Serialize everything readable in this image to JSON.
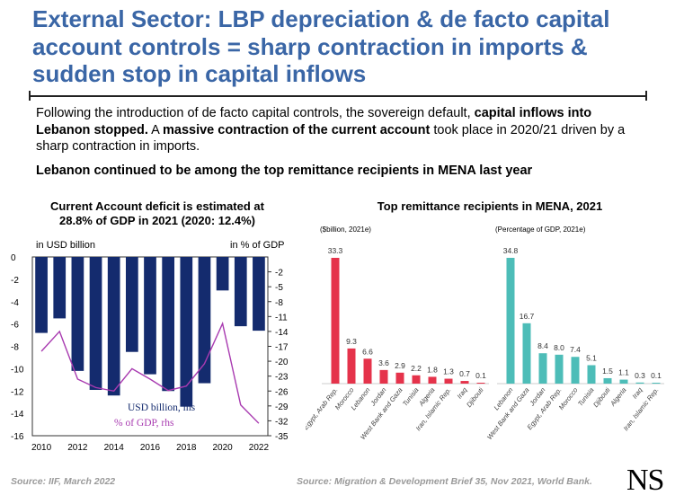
{
  "slide": {
    "title": "External Sector: LBP depreciation & de facto capital account controls = sharp contraction in imports & sudden stop in capital inflows",
    "paragraph": {
      "p1": "Following the introduction of de facto capital controls, the sovereign default, ",
      "b1": "capital inflows into Lebanon stopped.",
      "p2": " A ",
      "b2": "massive contraction of the current account",
      "p3": " took place in 2020/21 driven by a sharp contraction in imports."
    },
    "lead2": "Lebanon continued to be among the top remittance recipients in MENA last year",
    "source_left": "Source: IIF, March 2022",
    "source_right": "Source: Migration & Development Brief 35, Nov 2021, World Bank.",
    "logo": "NS"
  },
  "chart_data": [
    {
      "type": "bar",
      "title": "Current Account deficit is estimated at 28.8% of GDP in 2021 (2020: 12.4%)",
      "left_axis_label": "in USD billion",
      "right_axis_label": "in % of GDP",
      "categories": [
        "2010",
        "2011",
        "2012",
        "2013",
        "2014",
        "2015",
        "2016",
        "2017",
        "2018",
        "2019",
        "2020",
        "2021",
        "2022"
      ],
      "x_tick_labels": [
        "2010",
        "2012",
        "2014",
        "2016",
        "2018",
        "2020",
        "2022"
      ],
      "ylim_left": [
        -16,
        0
      ],
      "y_ticks_left": [
        "0",
        "-2",
        "-4",
        "-6",
        "-8",
        "-10",
        "-12",
        "-14",
        "-16"
      ],
      "ylim_right": [
        -35,
        1
      ],
      "y_ticks_right": [
        "-2",
        "-5",
        "-8",
        "-11",
        "-14",
        "-17",
        "-20",
        "-23",
        "-26",
        "-29",
        "-32",
        "-35"
      ],
      "series": [
        {
          "name": "USD billion, lhs",
          "kind": "bar",
          "color": "#142b6e",
          "values": [
            -6.8,
            -5.5,
            -10.2,
            -11.9,
            -12.4,
            -8.5,
            -10.5,
            -12.0,
            -13.4,
            -11.3,
            -3.0,
            -6.2,
            -6.6
          ]
        },
        {
          "name": "% of GDP, rhs",
          "kind": "line",
          "color": "#a83ab0",
          "values": [
            -18.0,
            -14.0,
            -23.6,
            -25.3,
            -26.0,
            -21.5,
            -23.6,
            -25.9,
            -25.0,
            -20.5,
            -12.4,
            -28.8,
            -32.5
          ]
        }
      ]
    },
    {
      "type": "bar",
      "title": "Top remittance recipients in MENA, 2021",
      "subtitle": "($billion, 2021e)",
      "color": "#e5334b",
      "categories": [
        "Egypt, Arab Rep.",
        "Morocco",
        "Lebanon",
        "Jordan",
        "West Bank and Gaza",
        "Tunisia",
        "Algeria",
        "Iran, Islamic Rep.",
        "Iraq",
        "Djibouti"
      ],
      "values": [
        33.3,
        9.3,
        6.6,
        3.6,
        2.9,
        2.2,
        1.8,
        1.3,
        0.7,
        0.1
      ],
      "value_labels": [
        "33.3",
        "9.3",
        "6.6",
        "3.6",
        "2.9",
        "2.2",
        "1.8",
        "1.3",
        "0.7",
        "0.1"
      ]
    },
    {
      "type": "bar",
      "subtitle": "(Percentage of GDP, 2021e)",
      "color": "#4dbdb8",
      "categories": [
        "Lebanon",
        "West Bank and Gaza",
        "Jordan",
        "Egypt, Arab Rep.",
        "Morocco",
        "Tunisia",
        "Djibouti",
        "Algeria",
        "Iraq",
        "Iran, Islamic Rep."
      ],
      "values": [
        34.8,
        16.7,
        8.4,
        8.0,
        7.4,
        5.1,
        1.5,
        1.1,
        0.3,
        0.1
      ],
      "value_labels": [
        "34.8",
        "16.7",
        "8.4",
        "8.0",
        "7.4",
        "5.1",
        "1.5",
        "1.1",
        "0.3",
        "0.1"
      ]
    }
  ]
}
